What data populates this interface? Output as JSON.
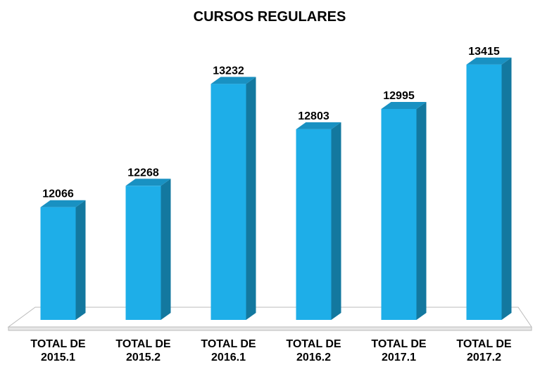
{
  "chart_data": {
    "type": "bar3d",
    "title": "CURSOS REGULARES",
    "categories": [
      "TOTAL DE 2015.1",
      "TOTAL DE 2015.2",
      "TOTAL DE 2016.1",
      "TOTAL DE 2016.2",
      "TOTAL DE 2017.1",
      "TOTAL DE 2017.2"
    ],
    "values": [
      12066,
      12268,
      13232,
      12803,
      12995,
      13415
    ],
    "color": "#1eaee8",
    "ylim": [
      11000,
      13600
    ]
  }
}
